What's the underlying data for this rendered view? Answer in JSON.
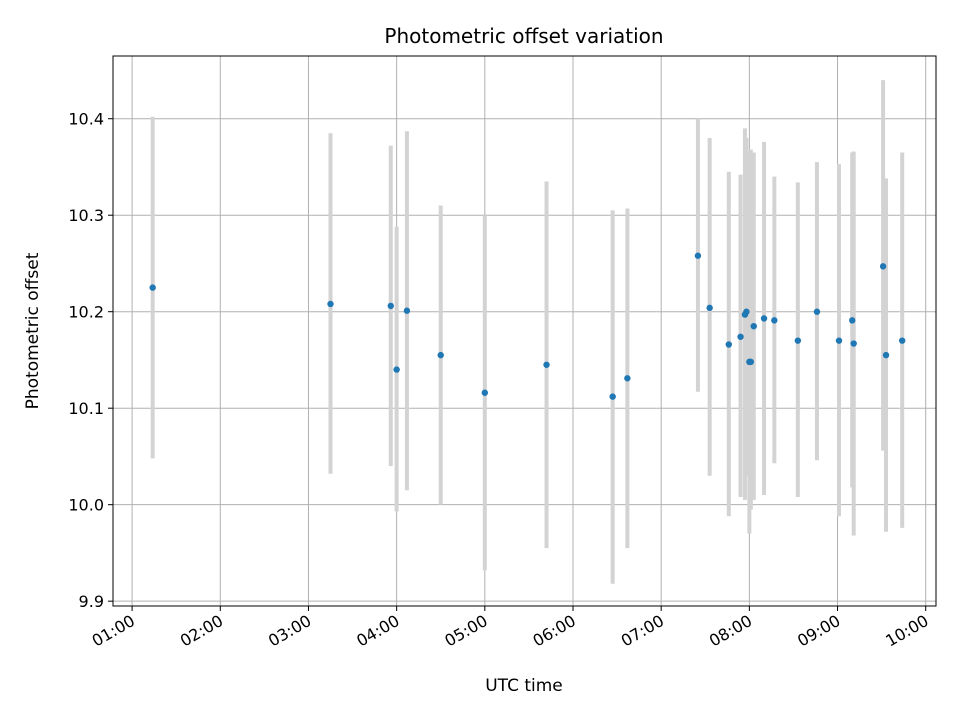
{
  "chart_data": {
    "type": "scatter",
    "title": "Photometric offset variation",
    "xlabel": "UTC time",
    "ylabel": "Photometric offset",
    "xlim": [
      "00:47",
      "10:07"
    ],
    "ylim": [
      9.895,
      10.465
    ],
    "xticks": [
      "01:00",
      "02:00",
      "03:00",
      "04:00",
      "05:00",
      "06:00",
      "07:00",
      "08:00",
      "09:00",
      "10:00"
    ],
    "yticks": [
      "9.9",
      "10.0",
      "10.1",
      "10.2",
      "10.3",
      "10.4"
    ],
    "grid": true,
    "colors": {
      "points": "#1f77b4",
      "errorbars": "#d3d3d3",
      "grid": "#b0b0b0"
    },
    "series": [
      {
        "points": [
          {
            "x": "01:14",
            "y": 10.225,
            "ylow": 10.048,
            "yhigh": 10.402
          },
          {
            "x": "03:15",
            "y": 10.208,
            "ylow": 10.032,
            "yhigh": 10.385
          },
          {
            "x": "03:56",
            "y": 10.206,
            "ylow": 10.04,
            "yhigh": 10.372
          },
          {
            "x": "04:00",
            "y": 10.14,
            "ylow": 9.993,
            "yhigh": 10.288
          },
          {
            "x": "04:07",
            "y": 10.201,
            "ylow": 10.015,
            "yhigh": 10.387
          },
          {
            "x": "04:30",
            "y": 10.155,
            "ylow": 10.0,
            "yhigh": 10.31
          },
          {
            "x": "05:00",
            "y": 10.116,
            "ylow": 9.932,
            "yhigh": 10.3
          },
          {
            "x": "05:42",
            "y": 10.145,
            "ylow": 9.955,
            "yhigh": 10.335
          },
          {
            "x": "06:27",
            "y": 10.112,
            "ylow": 9.918,
            "yhigh": 10.305
          },
          {
            "x": "06:37",
            "y": 10.131,
            "ylow": 9.955,
            "yhigh": 10.307
          },
          {
            "x": "07:25",
            "y": 10.258,
            "ylow": 10.117,
            "yhigh": 10.4
          },
          {
            "x": "07:33",
            "y": 10.204,
            "ylow": 10.03,
            "yhigh": 10.38
          },
          {
            "x": "07:46",
            "y": 10.166,
            "ylow": 9.988,
            "yhigh": 10.345
          },
          {
            "x": "07:54",
            "y": 10.174,
            "ylow": 10.008,
            "yhigh": 10.342
          },
          {
            "x": "07:57",
            "y": 10.197,
            "ylow": 10.005,
            "yhigh": 10.39
          },
          {
            "x": "07:58",
            "y": 10.2,
            "ylow": 10.03,
            "yhigh": 10.38
          },
          {
            "x": "08:00",
            "y": 10.148,
            "ylow": 9.97,
            "yhigh": 10.365
          },
          {
            "x": "08:01",
            "y": 10.148,
            "ylow": 9.995,
            "yhigh": 10.368
          },
          {
            "x": "08:03",
            "y": 10.185,
            "ylow": 10.005,
            "yhigh": 10.365
          },
          {
            "x": "08:10",
            "y": 10.193,
            "ylow": 10.01,
            "yhigh": 10.376
          },
          {
            "x": "08:17",
            "y": 10.191,
            "ylow": 10.043,
            "yhigh": 10.34
          },
          {
            "x": "08:33",
            "y": 10.17,
            "ylow": 10.008,
            "yhigh": 10.334
          },
          {
            "x": "08:46",
            "y": 10.2,
            "ylow": 10.046,
            "yhigh": 10.355
          },
          {
            "x": "09:01",
            "y": 10.17,
            "ylow": 9.988,
            "yhigh": 10.353
          },
          {
            "x": "09:10",
            "y": 10.191,
            "ylow": 10.018,
            "yhigh": 10.365
          },
          {
            "x": "09:11",
            "y": 10.167,
            "ylow": 9.968,
            "yhigh": 10.366
          },
          {
            "x": "09:31",
            "y": 10.247,
            "ylow": 10.056,
            "yhigh": 10.44
          },
          {
            "x": "09:33",
            "y": 10.155,
            "ylow": 9.972,
            "yhigh": 10.338
          },
          {
            "x": "09:44",
            "y": 10.17,
            "ylow": 9.976,
            "yhigh": 10.365
          }
        ]
      }
    ]
  }
}
